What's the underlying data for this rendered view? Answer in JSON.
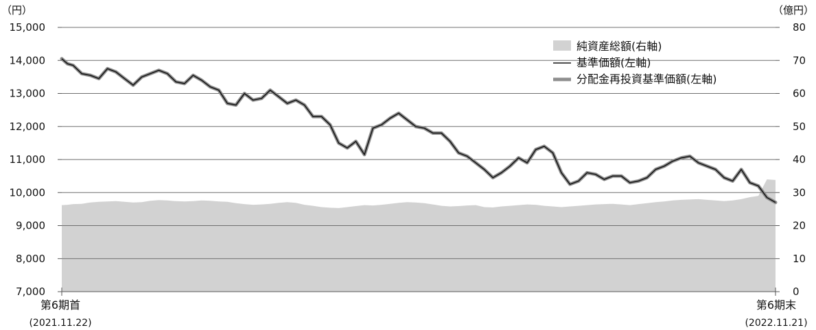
{
  "chart_data": {
    "type": "line",
    "left_axis_unit": "（円）",
    "right_axis_unit": "（億円）",
    "left_ticks": [
      "7,000",
      "8,000",
      "9,000",
      "10,000",
      "11,000",
      "12,000",
      "13,000",
      "14,000",
      "15,000"
    ],
    "left_ylim": [
      7000,
      15000
    ],
    "right_ticks": [
      "0",
      "10",
      "20",
      "30",
      "40",
      "50",
      "60",
      "70",
      "80"
    ],
    "right_ylim": [
      0,
      80
    ],
    "x_start_label": "第6期首",
    "x_start_date": "(2021.11.22)",
    "x_end_label": "第6期末",
    "x_end_date": "(2022.11.21)",
    "grid": true,
    "legend_position": "top-right",
    "legend": [
      {
        "label": "純資産総額(右軸)",
        "style": "area",
        "color": "#d2d2d2"
      },
      {
        "label": "基準価額(左軸)",
        "style": "thin-line",
        "color": "#111111"
      },
      {
        "label": "分配金再投資基準価額(左軸)",
        "style": "thick-line",
        "color": "#8e8e8e"
      }
    ],
    "x": [
      0,
      2,
      4,
      7,
      10,
      13,
      16,
      19,
      22,
      25,
      28,
      31,
      34,
      37,
      40,
      43,
      46,
      49,
      52,
      55,
      58,
      61,
      64,
      67,
      70,
      73,
      76,
      79,
      82,
      85,
      88,
      91,
      94,
      97,
      100,
      103,
      106,
      109,
      112,
      115,
      118,
      121,
      124,
      127,
      130,
      133,
      136,
      139,
      142,
      145,
      148,
      151,
      154,
      157,
      160,
      163,
      166,
      169,
      172,
      175,
      178,
      181,
      184,
      187,
      190,
      193,
      196,
      199,
      202,
      205,
      208,
      211,
      214,
      217,
      220,
      223,
      226,
      229,
      232,
      235,
      238,
      241,
      244,
      247,
      250
    ],
    "series": [
      {
        "name": "基準価額(左軸)",
        "axis": "left",
        "values": [
          14050,
          13900,
          13850,
          13600,
          13550,
          13450,
          13750,
          13650,
          13450,
          13250,
          13500,
          13600,
          13700,
          13600,
          13350,
          13300,
          13550,
          13400,
          13200,
          13100,
          12700,
          12650,
          13000,
          12800,
          12850,
          13100,
          12900,
          12700,
          12800,
          12650,
          12300,
          12300,
          12050,
          11500,
          11350,
          11550,
          11150,
          11950,
          12050,
          12250,
          12400,
          12200,
          12000,
          11950,
          11800,
          11800,
          11550,
          11200,
          11100,
          10900,
          10700,
          10450,
          10600,
          10800,
          11050,
          10900,
          11300,
          11400,
          11200,
          10600,
          10250,
          10350,
          10600,
          10550,
          10400,
          10500,
          10500,
          10300,
          10350,
          10450,
          10700,
          10800,
          10950,
          11050,
          11100,
          10900,
          10800,
          10700,
          10450,
          10350,
          10700,
          10300,
          10200,
          9850,
          9700
        ],
        "color": "#111111"
      },
      {
        "name": "分配金再投資基準価額(左軸)",
        "axis": "left",
        "values": [
          14050,
          13900,
          13850,
          13600,
          13550,
          13450,
          13750,
          13650,
          13450,
          13250,
          13500,
          13600,
          13700,
          13600,
          13350,
          13300,
          13550,
          13400,
          13200,
          13100,
          12700,
          12650,
          13000,
          12800,
          12850,
          13100,
          12900,
          12700,
          12800,
          12650,
          12300,
          12300,
          12050,
          11500,
          11350,
          11550,
          11150,
          11950,
          12050,
          12250,
          12400,
          12200,
          12000,
          11950,
          11800,
          11800,
          11550,
          11200,
          11100,
          10900,
          10700,
          10450,
          10600,
          10800,
          11050,
          10900,
          11300,
          11400,
          11200,
          10600,
          10250,
          10350,
          10600,
          10550,
          10400,
          10500,
          10500,
          10300,
          10350,
          10450,
          10700,
          10800,
          10950,
          11050,
          11100,
          10900,
          10800,
          10700,
          10450,
          10350,
          10700,
          10300,
          10200,
          9850,
          9700
        ],
        "color": "#8e8e8e"
      },
      {
        "name": "純資産総額(右軸)",
        "axis": "right",
        "values": [
          26.2,
          26.3,
          26.5,
          26.6,
          27,
          27.2,
          27.3,
          27.4,
          27.2,
          27,
          27.1,
          27.5,
          27.7,
          27.6,
          27.4,
          27.3,
          27.4,
          27.6,
          27.5,
          27.3,
          27.2,
          26.8,
          26.5,
          26.3,
          26.4,
          26.6,
          26.9,
          27.1,
          26.9,
          26.3,
          26,
          25.6,
          25.4,
          25.3,
          25.6,
          25.9,
          26.2,
          26.1,
          26.3,
          26.6,
          26.9,
          27.1,
          27,
          26.8,
          26.4,
          26,
          25.8,
          25.9,
          26.1,
          26.2,
          25.6,
          25.5,
          25.8,
          26,
          26.2,
          26.4,
          26.3,
          26,
          25.8,
          25.6,
          25.8,
          26,
          26.2,
          26.4,
          26.5,
          26.6,
          26.4,
          26.2,
          26.5,
          26.8,
          27.1,
          27.3,
          27.6,
          27.8,
          27.9,
          28,
          27.8,
          27.6,
          27.4,
          27.6,
          28,
          28.6,
          29,
          34,
          33.8
        ]
      }
    ]
  }
}
